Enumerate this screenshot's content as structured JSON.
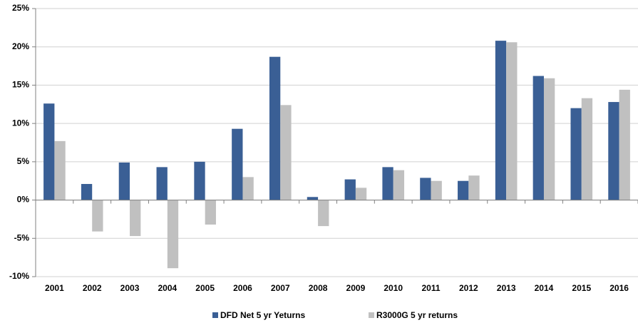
{
  "chart_data": {
    "type": "bar",
    "categories": [
      "2001",
      "2002",
      "2003",
      "2004",
      "2005",
      "2006",
      "2007",
      "2008",
      "2009",
      "2010",
      "2011",
      "2012",
      "2013",
      "2014",
      "2015",
      "2016"
    ],
    "series": [
      {
        "name": "DFD Net 5 yr Yeturns",
        "color": "#3a5f95",
        "values": [
          12.6,
          2.1,
          4.9,
          4.3,
          5.0,
          9.3,
          18.7,
          0.4,
          2.7,
          4.3,
          2.9,
          2.5,
          20.8,
          16.2,
          12.0,
          12.8
        ]
      },
      {
        "name": "R3000G 5 yr returns",
        "color": "#c0c0c0",
        "values": [
          7.7,
          -4.1,
          -4.7,
          -8.9,
          -3.2,
          3.0,
          12.4,
          -3.4,
          1.6,
          3.9,
          2.5,
          3.2,
          20.6,
          15.9,
          13.3,
          14.4
        ]
      }
    ],
    "ylim": [
      -10,
      25
    ],
    "yticks": [
      {
        "value": -10,
        "label": "-10%"
      },
      {
        "value": -5,
        "label": "-5%"
      },
      {
        "value": 0,
        "label": "0%"
      },
      {
        "value": 5,
        "label": "5%"
      },
      {
        "value": 10,
        "label": "10%"
      },
      {
        "value": 15,
        "label": "15%"
      },
      {
        "value": 20,
        "label": "20%"
      },
      {
        "value": 25,
        "label": "25%"
      }
    ],
    "grid": true,
    "legend": "bottom"
  }
}
